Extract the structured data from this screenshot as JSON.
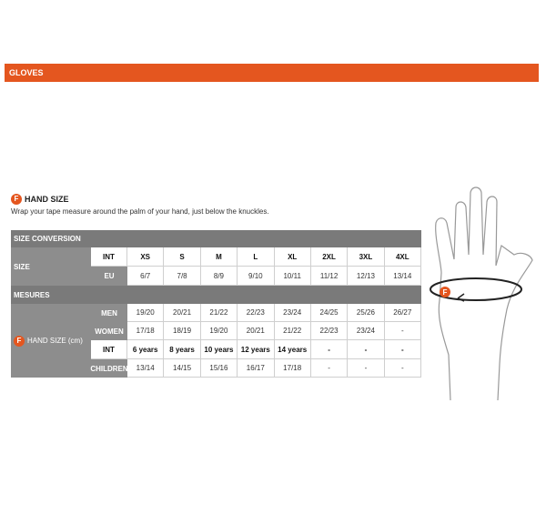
{
  "header": {
    "title": "GLOVES"
  },
  "section": {
    "icon": "F",
    "title": "HAND SIZE",
    "instruction": "Wrap your tape measure around the palm of your hand, just below the knuckles."
  },
  "table": {
    "size_conversion": {
      "title": "SIZE CONVERSION",
      "label": "SIZE",
      "rows": [
        {
          "name": "INT",
          "cells": [
            "XS",
            "S",
            "M",
            "L",
            "XL",
            "2XL",
            "3XL",
            "4XL"
          ]
        },
        {
          "name": "EU",
          "cells": [
            "6/7",
            "7/8",
            "8/9",
            "9/10",
            "10/11",
            "11/12",
            "12/13",
            "13/14"
          ]
        }
      ]
    },
    "measures": {
      "title": "MESURES",
      "icon": "F",
      "label": "HAND SIZE (cm)",
      "rows": [
        {
          "name": "MEN",
          "cells": [
            "19/20",
            "20/21",
            "21/22",
            "22/23",
            "23/24",
            "24/25",
            "25/26",
            "26/27"
          ]
        },
        {
          "name": "WOMEN",
          "cells": [
            "17/18",
            "18/19",
            "19/20",
            "20/21",
            "21/22",
            "22/23",
            "23/24",
            "-"
          ]
        },
        {
          "name": "INT",
          "cells": [
            "6 years",
            "8 years",
            "10 years",
            "12 years",
            "14 years",
            "-",
            "-",
            "-"
          ]
        },
        {
          "name": "CHILDREN",
          "cells": [
            "13/14",
            "14/15",
            "15/16",
            "16/17",
            "17/18",
            "-",
            "-",
            "-"
          ]
        }
      ]
    }
  },
  "illustration": {
    "icon": "F"
  }
}
